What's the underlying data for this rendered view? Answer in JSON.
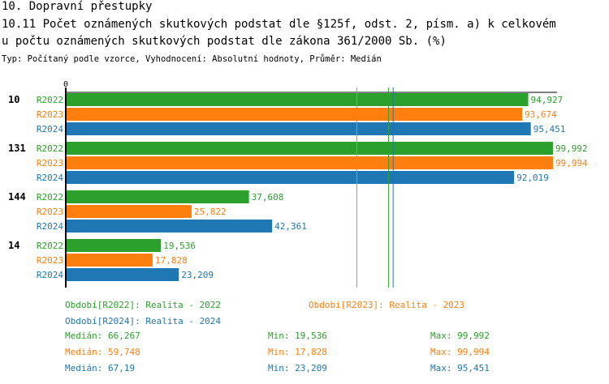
{
  "header": {
    "section": "10. Dopravní přestupky",
    "title_line1": "10.11 Počet oznámených skutkových podstat dle §125f, odst. 2, písm. a) k celkovém",
    "title_line2": "u počtu oznámených skutkových podstat dle zákona 361/2000 Sb. (%)",
    "subtitle": "Typ: Počítaný podle vzorce, Vyhodnocení: Absolutní hodnoty, Průměr: Medián"
  },
  "colors": {
    "R2022": "#2ca02c",
    "R2023": "#ff7f0e",
    "R2024": "#1f77b4"
  },
  "chart_data": {
    "type": "bar",
    "orientation": "horizontal",
    "xlim": [
      0,
      100
    ],
    "x_tick_labels": [
      "0"
    ],
    "categories": [
      "10",
      "131",
      "144",
      "14"
    ],
    "series": [
      {
        "name": "R2022",
        "values": [
          94.927,
          99.992,
          37.608,
          19.536
        ],
        "labels": [
          "94,927",
          "99,992",
          "37,608",
          "19,536"
        ],
        "median": 66.267
      },
      {
        "name": "R2023",
        "values": [
          93.674,
          99.994,
          25.822,
          17.828
        ],
        "labels": [
          "93,674",
          "99,994",
          "25,822",
          "17,828"
        ],
        "median": 59.748
      },
      {
        "name": "R2024",
        "values": [
          95.451,
          92.019,
          42.361,
          23.209
        ],
        "labels": [
          "95,451",
          "92,019",
          "42,361",
          "23,209"
        ],
        "median": 67.19
      }
    ]
  },
  "legend": {
    "items": [
      "Období[R2022]: Realita - 2022",
      "Období[R2023]: Realita - 2023",
      "Období[R2024]: Realita - 2024"
    ],
    "stats": [
      {
        "median": "Medián: 66,267",
        "min": "Min: 19,536",
        "max": "Max: 99,992"
      },
      {
        "median": "Medián: 59,748",
        "min": "Min: 17,828",
        "max": "Max: 99,994"
      },
      {
        "median": "Medián: 67,19",
        "min": "Min: 23,209",
        "max": "Max: 95,451"
      }
    ]
  }
}
